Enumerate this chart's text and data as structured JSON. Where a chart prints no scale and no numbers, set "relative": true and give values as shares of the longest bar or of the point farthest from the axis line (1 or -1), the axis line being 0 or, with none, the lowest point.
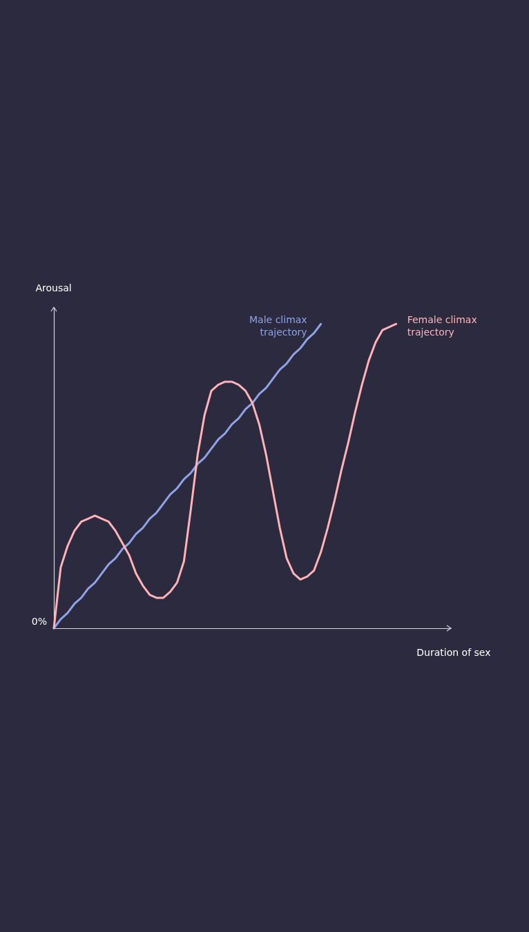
{
  "chart_data": {
    "type": "line",
    "relative": true,
    "xlabel": "Duration of sex",
    "ylabel": "Arousal",
    "annotations": [
      "0%"
    ],
    "legend": false,
    "line_style": "solid",
    "categories": [
      null,
      null,
      null,
      null,
      null,
      null,
      null,
      null,
      null,
      null,
      null,
      null,
      null,
      null,
      null,
      null,
      null,
      null,
      null,
      null,
      null,
      null,
      null,
      null,
      null,
      null,
      null,
      null,
      null,
      null,
      null,
      null,
      null,
      null,
      null,
      null,
      null,
      null,
      null,
      null,
      null,
      null,
      null,
      null,
      null,
      null,
      null,
      null,
      null,
      null,
      null,
      null,
      null,
      null,
      null,
      null,
      null,
      null,
      null
    ],
    "series": [
      {
        "name": "Male climax trajectory",
        "color": "#8fa3e6",
        "values": [
          0,
          0.03,
          0.05,
          0.08,
          0.1,
          0.13,
          0.15,
          0.18,
          0.21,
          0.23,
          0.26,
          0.28,
          0.31,
          0.33,
          0.36,
          0.38,
          0.41,
          0.44,
          0.46,
          0.49,
          0.51,
          0.54,
          0.56,
          0.59,
          0.62,
          0.64,
          0.67,
          0.69,
          0.72,
          0.74,
          0.77,
          0.79,
          0.82,
          0.85,
          0.87,
          0.9,
          0.92,
          0.95,
          0.97,
          1,
          null,
          null,
          null,
          null,
          null,
          null,
          null,
          null,
          null,
          null,
          null,
          null,
          null,
          null,
          null,
          null,
          null,
          null,
          null
        ]
      },
      {
        "name": "Female climax trajectory",
        "color": "#ffb3b8",
        "values": [
          0,
          0.2,
          0.27,
          0.32,
          0.35,
          0.36,
          0.37,
          0.36,
          0.35,
          0.32,
          0.28,
          0.24,
          0.18,
          0.14,
          0.11,
          0.1,
          0.1,
          0.12,
          0.15,
          0.22,
          0.39,
          0.57,
          0.7,
          0.78,
          0.8,
          0.81,
          0.81,
          0.8,
          0.78,
          0.74,
          0.67,
          0.57,
          0.45,
          0.33,
          0.23,
          0.18,
          0.16,
          0.17,
          0.19,
          0.25,
          0.33,
          0.42,
          0.52,
          0.61,
          0.71,
          0.8,
          0.88,
          0.94,
          0.98,
          0.99,
          1,
          null,
          null,
          null,
          null,
          null,
          null,
          null,
          null
        ]
      }
    ]
  }
}
